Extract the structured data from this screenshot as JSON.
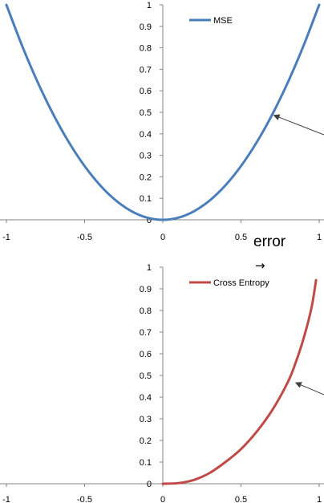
{
  "chart_data": [
    {
      "type": "line",
      "title": "",
      "xlabel": "",
      "ylabel": "",
      "xlim": [
        -1,
        1
      ],
      "ylim": [
        0,
        1
      ],
      "xticks": [
        "-1",
        "-0.5",
        "0",
        "0.5",
        "1"
      ],
      "yticks": [
        "0",
        "0.1",
        "0.2",
        "0.3",
        "0.4",
        "0.5",
        "0.6",
        "0.7",
        "0.8",
        "0.9",
        "1"
      ],
      "grid": false,
      "legend_position": "top-center",
      "series": [
        {
          "name": "MSE",
          "color": "#4a7ebb",
          "x": [
            -1,
            -0.9,
            -0.8,
            -0.7,
            -0.6,
            -0.5,
            -0.4,
            -0.3,
            -0.2,
            -0.1,
            0,
            0.1,
            0.2,
            0.3,
            0.4,
            0.5,
            0.6,
            0.7,
            0.8,
            0.9,
            1
          ],
          "y": [
            1,
            0.81,
            0.64,
            0.49,
            0.36,
            0.25,
            0.16,
            0.09,
            0.04,
            0.01,
            0,
            0.01,
            0.04,
            0.09,
            0.16,
            0.25,
            0.36,
            0.49,
            0.64,
            0.81,
            1
          ]
        }
      ],
      "annotation": {
        "arrow_to": [
          0.7,
          0.49
        ]
      }
    },
    {
      "type": "line",
      "title": "",
      "xlabel": "",
      "ylabel": "",
      "xlim": [
        -1,
        1
      ],
      "ylim": [
        0,
        1
      ],
      "xticks": [
        "-1",
        "-0.5",
        "0",
        "0.5",
        "1"
      ],
      "yticks": [
        "0",
        "0.1",
        "0.2",
        "0.3",
        "0.4",
        "0.5",
        "0.6",
        "0.7",
        "0.8",
        "0.9",
        "1"
      ],
      "grid": false,
      "legend_position": "top-center",
      "series": [
        {
          "name": "Cross Entropy",
          "color": "#be4b48",
          "x": [
            0,
            0.1,
            0.2,
            0.3,
            0.4,
            0.5,
            0.6,
            0.7,
            0.8,
            0.85,
            0.9,
            0.95,
            0.98
          ],
          "y": [
            0,
            0.003,
            0.018,
            0.05,
            0.1,
            0.16,
            0.24,
            0.34,
            0.47,
            0.56,
            0.67,
            0.81,
            0.94
          ]
        }
      ],
      "annotation": {
        "arrow_to": [
          0.84,
          0.47
        ]
      }
    }
  ],
  "labels": {
    "error": "error",
    "arrow": "→"
  }
}
